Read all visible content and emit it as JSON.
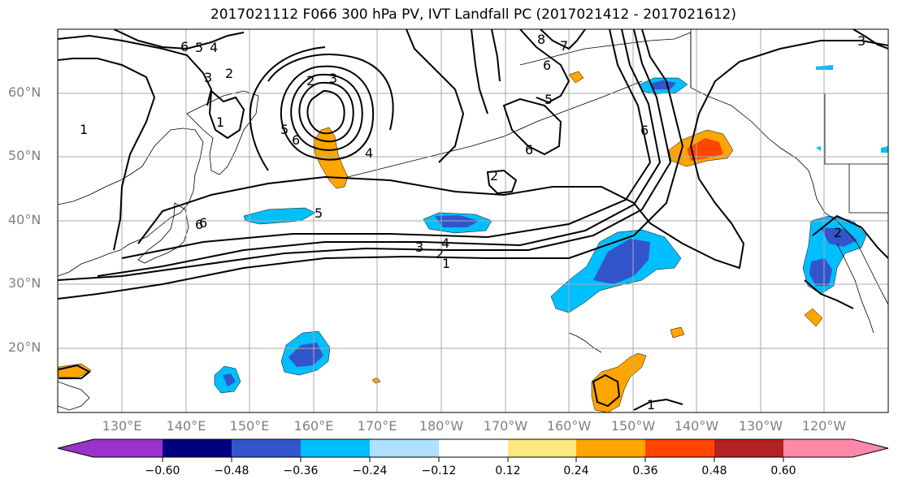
{
  "title": "2017021112 F066 300 hPa PV, IVT Landfall PC (2017021412 - 2017021612)",
  "lat_labels": [
    "60°N",
    "50°N",
    "40°N",
    "30°N",
    "20°N"
  ],
  "lon_labels": [
    "130°E",
    "140°E",
    "150°E",
    "160°E",
    "170°E",
    "180°W",
    "170°W",
    "160°W",
    "150°W",
    "140°W",
    "130°W",
    "120°W"
  ],
  "colorbar": {
    "ticks": [
      "−0.60",
      "−0.48",
      "−0.36",
      "−0.24",
      "−0.12",
      "0.12",
      "0.24",
      "0.36",
      "0.48",
      "0.60"
    ],
    "colors": [
      "#9933cc",
      "#000080",
      "#3355cc",
      "#00bfff",
      "#b0e0ff",
      "#ffffff",
      "#ffe97f",
      "#ffa500",
      "#ff4500",
      "#b22222",
      "#ff88aa"
    ]
  },
  "contour_labels": [
    "6",
    "5",
    "4",
    "3",
    "2",
    "1",
    "1",
    "2",
    "3",
    "4",
    "5",
    "6",
    "5",
    "6",
    "2",
    "7",
    "6",
    "8",
    "6",
    "6",
    "5",
    "4",
    "3",
    "2",
    "1",
    "1",
    "2",
    "6",
    "3"
  ]
}
